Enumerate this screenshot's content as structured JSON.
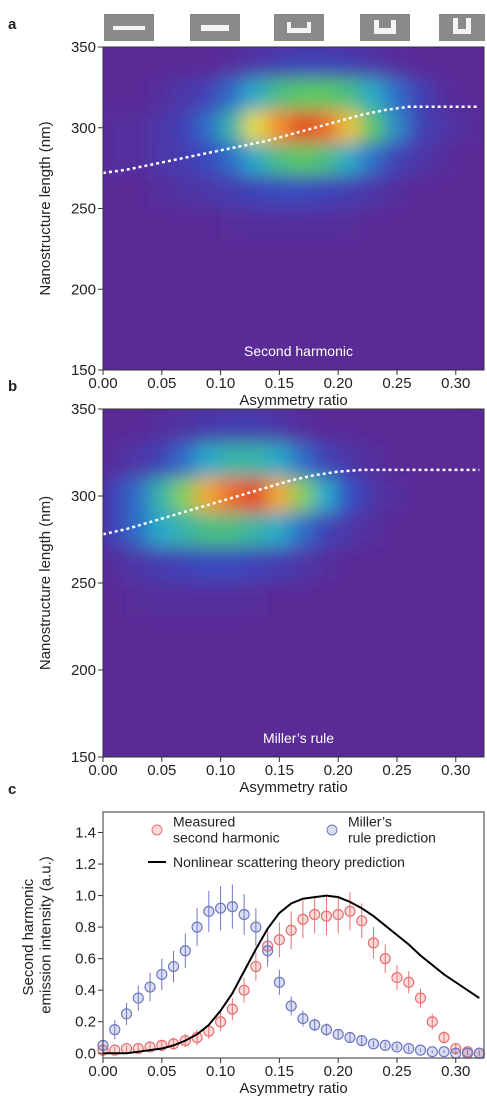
{
  "chart_data": [
    {
      "type": "heatmap",
      "label": "a",
      "xlabel": "Asymmetry ratio",
      "ylabel": "Nanostructure length (nm)",
      "annotation": "Second harmonic",
      "xlim": [
        0,
        0.324
      ],
      "ylim": [
        150,
        350
      ],
      "xticks": [
        {
          "value": 0,
          "label": "0.00"
        },
        {
          "value": 0.05,
          "label": "0.05"
        },
        {
          "value": 0.1,
          "label": "0.10"
        },
        {
          "value": 0.15,
          "label": "0.15"
        },
        {
          "value": 0.2,
          "label": "0.20"
        },
        {
          "value": 0.25,
          "label": "0.25"
        },
        {
          "value": 0.3,
          "label": "0.30"
        }
      ],
      "yticks": [
        150,
        200,
        250,
        300,
        350
      ],
      "x": [
        0.01,
        0.03,
        0.05,
        0.07,
        0.09,
        0.11,
        0.13,
        0.15,
        0.17,
        0.19,
        0.21,
        0.23,
        0.25,
        0.27,
        0.29,
        0.31
      ],
      "y": [
        340,
        320,
        300,
        280,
        260,
        240,
        220,
        200,
        180,
        160
      ],
      "z": [
        [
          0.1,
          0.1,
          0.1,
          0.1,
          0.1,
          0.12,
          0.15,
          0.18,
          0.2,
          0.2,
          0.18,
          0.15,
          0.12,
          0.1,
          0.1,
          0.1
        ],
        [
          0.1,
          0.1,
          0.12,
          0.15,
          0.2,
          0.3,
          0.4,
          0.5,
          0.55,
          0.55,
          0.5,
          0.4,
          0.3,
          0.2,
          0.12,
          0.1
        ],
        [
          0.12,
          0.12,
          0.15,
          0.2,
          0.3,
          0.45,
          0.7,
          0.85,
          0.95,
          0.9,
          0.75,
          0.55,
          0.35,
          0.2,
          0.15,
          0.12
        ],
        [
          0.12,
          0.12,
          0.15,
          0.18,
          0.22,
          0.3,
          0.4,
          0.5,
          0.55,
          0.5,
          0.4,
          0.3,
          0.2,
          0.15,
          0.12,
          0.1
        ],
        [
          0.1,
          0.1,
          0.12,
          0.14,
          0.15,
          0.18,
          0.2,
          0.22,
          0.22,
          0.2,
          0.18,
          0.15,
          0.12,
          0.1,
          0.1,
          0.1
        ],
        [
          0.1,
          0.1,
          0.1,
          0.1,
          0.1,
          0.11,
          0.12,
          0.12,
          0.12,
          0.12,
          0.11,
          0.1,
          0.1,
          0.1,
          0.1,
          0.1
        ],
        [
          0.1,
          0.1,
          0.1,
          0.1,
          0.1,
          0.1,
          0.1,
          0.1,
          0.1,
          0.1,
          0.1,
          0.1,
          0.1,
          0.1,
          0.1,
          0.1
        ],
        [
          0.1,
          0.1,
          0.1,
          0.1,
          0.1,
          0.1,
          0.1,
          0.1,
          0.1,
          0.1,
          0.1,
          0.1,
          0.1,
          0.1,
          0.1,
          0.1
        ],
        [
          0.1,
          0.1,
          0.1,
          0.1,
          0.1,
          0.1,
          0.1,
          0.1,
          0.1,
          0.1,
          0.1,
          0.1,
          0.1,
          0.1,
          0.1,
          0.1
        ],
        [
          0.1,
          0.1,
          0.1,
          0.1,
          0.1,
          0.1,
          0.1,
          0.1,
          0.1,
          0.1,
          0.1,
          0.1,
          0.1,
          0.1,
          0.1,
          0.1
        ]
      ],
      "line": {
        "color": "#ffffff",
        "x": [
          0,
          0.02,
          0.04,
          0.06,
          0.08,
          0.1,
          0.12,
          0.14,
          0.16,
          0.18,
          0.2,
          0.22,
          0.24,
          0.26,
          0.28,
          0.3,
          0.32
        ],
        "values": [
          272,
          274,
          277,
          280,
          283,
          286,
          289,
          292,
          296,
          300,
          304,
          308,
          311,
          313,
          313,
          313,
          313
        ]
      }
    },
    {
      "type": "heatmap",
      "label": "b",
      "xlabel": "Asymmetry ratio",
      "ylabel": "Nanostructure length (nm)",
      "annotation": "Miller’s rule",
      "xlim": [
        0,
        0.324
      ],
      "ylim": [
        150,
        350
      ],
      "xticks": [
        {
          "value": 0,
          "label": "0.00"
        },
        {
          "value": 0.05,
          "label": "0.05"
        },
        {
          "value": 0.1,
          "label": "0.10"
        },
        {
          "value": 0.15,
          "label": "0.15"
        },
        {
          "value": 0.2,
          "label": "0.20"
        },
        {
          "value": 0.25,
          "label": "0.25"
        },
        {
          "value": 0.3,
          "label": "0.30"
        }
      ],
      "yticks": [
        150,
        200,
        250,
        300,
        350
      ],
      "x": [
        0.01,
        0.03,
        0.05,
        0.07,
        0.09,
        0.11,
        0.13,
        0.15,
        0.17,
        0.19,
        0.21,
        0.23,
        0.25,
        0.27,
        0.29,
        0.31
      ],
      "y": [
        340,
        320,
        300,
        280,
        260,
        240,
        220,
        200,
        180,
        160
      ],
      "z": [
        [
          0.1,
          0.1,
          0.12,
          0.14,
          0.16,
          0.18,
          0.18,
          0.15,
          0.12,
          0.1,
          0.1,
          0.1,
          0.1,
          0.1,
          0.1,
          0.1
        ],
        [
          0.12,
          0.15,
          0.2,
          0.3,
          0.4,
          0.45,
          0.45,
          0.4,
          0.3,
          0.2,
          0.15,
          0.12,
          0.1,
          0.1,
          0.1,
          0.1
        ],
        [
          0.2,
          0.3,
          0.45,
          0.6,
          0.8,
          0.9,
          0.95,
          0.8,
          0.6,
          0.4,
          0.25,
          0.15,
          0.12,
          0.1,
          0.1,
          0.1
        ],
        [
          0.2,
          0.3,
          0.4,
          0.45,
          0.5,
          0.5,
          0.45,
          0.4,
          0.3,
          0.2,
          0.15,
          0.12,
          0.1,
          0.1,
          0.1,
          0.1
        ],
        [
          0.12,
          0.15,
          0.18,
          0.2,
          0.22,
          0.22,
          0.2,
          0.18,
          0.15,
          0.12,
          0.1,
          0.1,
          0.1,
          0.1,
          0.1,
          0.1
        ],
        [
          0.1,
          0.11,
          0.12,
          0.12,
          0.12,
          0.12,
          0.11,
          0.1,
          0.1,
          0.1,
          0.1,
          0.1,
          0.1,
          0.1,
          0.1,
          0.1
        ],
        [
          0.1,
          0.1,
          0.1,
          0.1,
          0.1,
          0.1,
          0.1,
          0.1,
          0.1,
          0.1,
          0.1,
          0.1,
          0.1,
          0.1,
          0.1,
          0.1
        ],
        [
          0.1,
          0.1,
          0.1,
          0.1,
          0.1,
          0.1,
          0.1,
          0.1,
          0.1,
          0.1,
          0.1,
          0.1,
          0.1,
          0.1,
          0.1,
          0.1
        ],
        [
          0.1,
          0.1,
          0.1,
          0.1,
          0.1,
          0.1,
          0.1,
          0.1,
          0.1,
          0.1,
          0.1,
          0.1,
          0.1,
          0.1,
          0.1,
          0.1
        ],
        [
          0.1,
          0.1,
          0.1,
          0.1,
          0.1,
          0.1,
          0.1,
          0.1,
          0.1,
          0.1,
          0.1,
          0.1,
          0.1,
          0.1,
          0.1,
          0.1
        ]
      ],
      "line": {
        "color": "#ffffff",
        "x": [
          0,
          0.02,
          0.04,
          0.06,
          0.08,
          0.1,
          0.12,
          0.14,
          0.16,
          0.18,
          0.2,
          0.22,
          0.24,
          0.26,
          0.28,
          0.3,
          0.32
        ],
        "values": [
          278,
          281,
          285,
          289,
          293,
          297,
          301,
          305,
          309,
          312,
          314,
          315,
          315,
          315,
          315,
          315,
          315
        ]
      }
    },
    {
      "type": "line",
      "label": "c",
      "xlabel": "Asymmetry ratio",
      "ylabel": "Second harmonic emission intensity (a.u.)",
      "xlim": [
        0,
        0.324
      ],
      "ylim": [
        -0.03,
        1.53
      ],
      "xticks": [
        {
          "value": 0,
          "label": "0.00"
        },
        {
          "value": 0.05,
          "label": "0.05"
        },
        {
          "value": 0.1,
          "label": "0.10"
        },
        {
          "value": 0.15,
          "label": "0.15"
        },
        {
          "value": 0.2,
          "label": "0.20"
        },
        {
          "value": 0.25,
          "label": "0.25"
        },
        {
          "value": 0.3,
          "label": "0.30"
        }
      ],
      "yticks": [
        {
          "value": 0,
          "label": "0.0"
        },
        {
          "value": 0.2,
          "label": "0.2"
        },
        {
          "value": 0.4,
          "label": "0.4"
        },
        {
          "value": 0.6,
          "label": "0.6"
        },
        {
          "value": 0.8,
          "label": "0.8"
        },
        {
          "value": 1,
          "label": "1.0"
        },
        {
          "value": 1.2,
          "label": "1.2"
        },
        {
          "value": 1.4,
          "label": "1.4"
        }
      ],
      "x": [
        0,
        0.01,
        0.02,
        0.03,
        0.04,
        0.05,
        0.06,
        0.07,
        0.08,
        0.09,
        0.1,
        0.11,
        0.12,
        0.13,
        0.14,
        0.15,
        0.16,
        0.17,
        0.18,
        0.19,
        0.2,
        0.21,
        0.22,
        0.23,
        0.24,
        0.25,
        0.26,
        0.27,
        0.28,
        0.29,
        0.3,
        0.31,
        0.32
      ],
      "series": [
        {
          "name": "Measured second harmonic",
          "color": "#e87070",
          "style": "markers",
          "values": [
            0.02,
            0.02,
            0.03,
            0.03,
            0.04,
            0.05,
            0.06,
            0.08,
            0.1,
            0.14,
            0.2,
            0.28,
            0.4,
            0.55,
            0.68,
            0.72,
            0.78,
            0.85,
            0.88,
            0.87,
            0.88,
            0.9,
            0.84,
            0.7,
            0.6,
            0.48,
            0.45,
            0.35,
            0.2,
            0.1,
            0.03,
            0.01,
            0
          ],
          "errors": [
            0.02,
            0.02,
            0.02,
            0.03,
            0.03,
            0.03,
            0.04,
            0.04,
            0.05,
            0.05,
            0.06,
            0.07,
            0.08,
            0.09,
            0.1,
            0.11,
            0.12,
            0.12,
            0.12,
            0.12,
            0.12,
            0.12,
            0.11,
            0.1,
            0.09,
            0.08,
            0.07,
            0.06,
            0.05,
            0.04,
            0.03,
            0.02,
            0.02
          ]
        },
        {
          "name": "Miller’s rule prediction",
          "color": "#6f78c4",
          "style": "markers",
          "values": [
            0.05,
            0.15,
            0.25,
            0.35,
            0.42,
            0.5,
            0.55,
            0.65,
            0.8,
            0.9,
            0.92,
            0.93,
            0.88,
            0.8,
            0.65,
            0.45,
            0.3,
            0.22,
            0.18,
            0.15,
            0.12,
            0.1,
            0.08,
            0.06,
            0.05,
            0.04,
            0.03,
            0.02,
            0.01,
            0.01,
            0,
            0,
            0
          ],
          "errors": [
            0.04,
            0.06,
            0.07,
            0.08,
            0.09,
            0.1,
            0.1,
            0.11,
            0.12,
            0.13,
            0.14,
            0.14,
            0.13,
            0.12,
            0.1,
            0.08,
            0.06,
            0.05,
            0.04,
            0.04,
            0.03,
            0.03,
            0.03,
            0.02,
            0.02,
            0.02,
            0.02,
            0.01,
            0.01,
            0.01,
            0.01,
            0.01,
            0.01
          ]
        },
        {
          "name": "Nonlinear scattering theory prediction",
          "color": "#000000",
          "style": "line",
          "values": [
            0,
            0,
            0,
            0.01,
            0.02,
            0.03,
            0.05,
            0.08,
            0.12,
            0.18,
            0.27,
            0.38,
            0.52,
            0.66,
            0.79,
            0.89,
            0.95,
            0.98,
            0.99,
            1.0,
            0.99,
            0.96,
            0.92,
            0.87,
            0.81,
            0.75,
            0.69,
            0.62,
            0.56,
            0.5,
            0.45,
            0.4,
            0.35
          ]
        }
      ]
    }
  ]
}
